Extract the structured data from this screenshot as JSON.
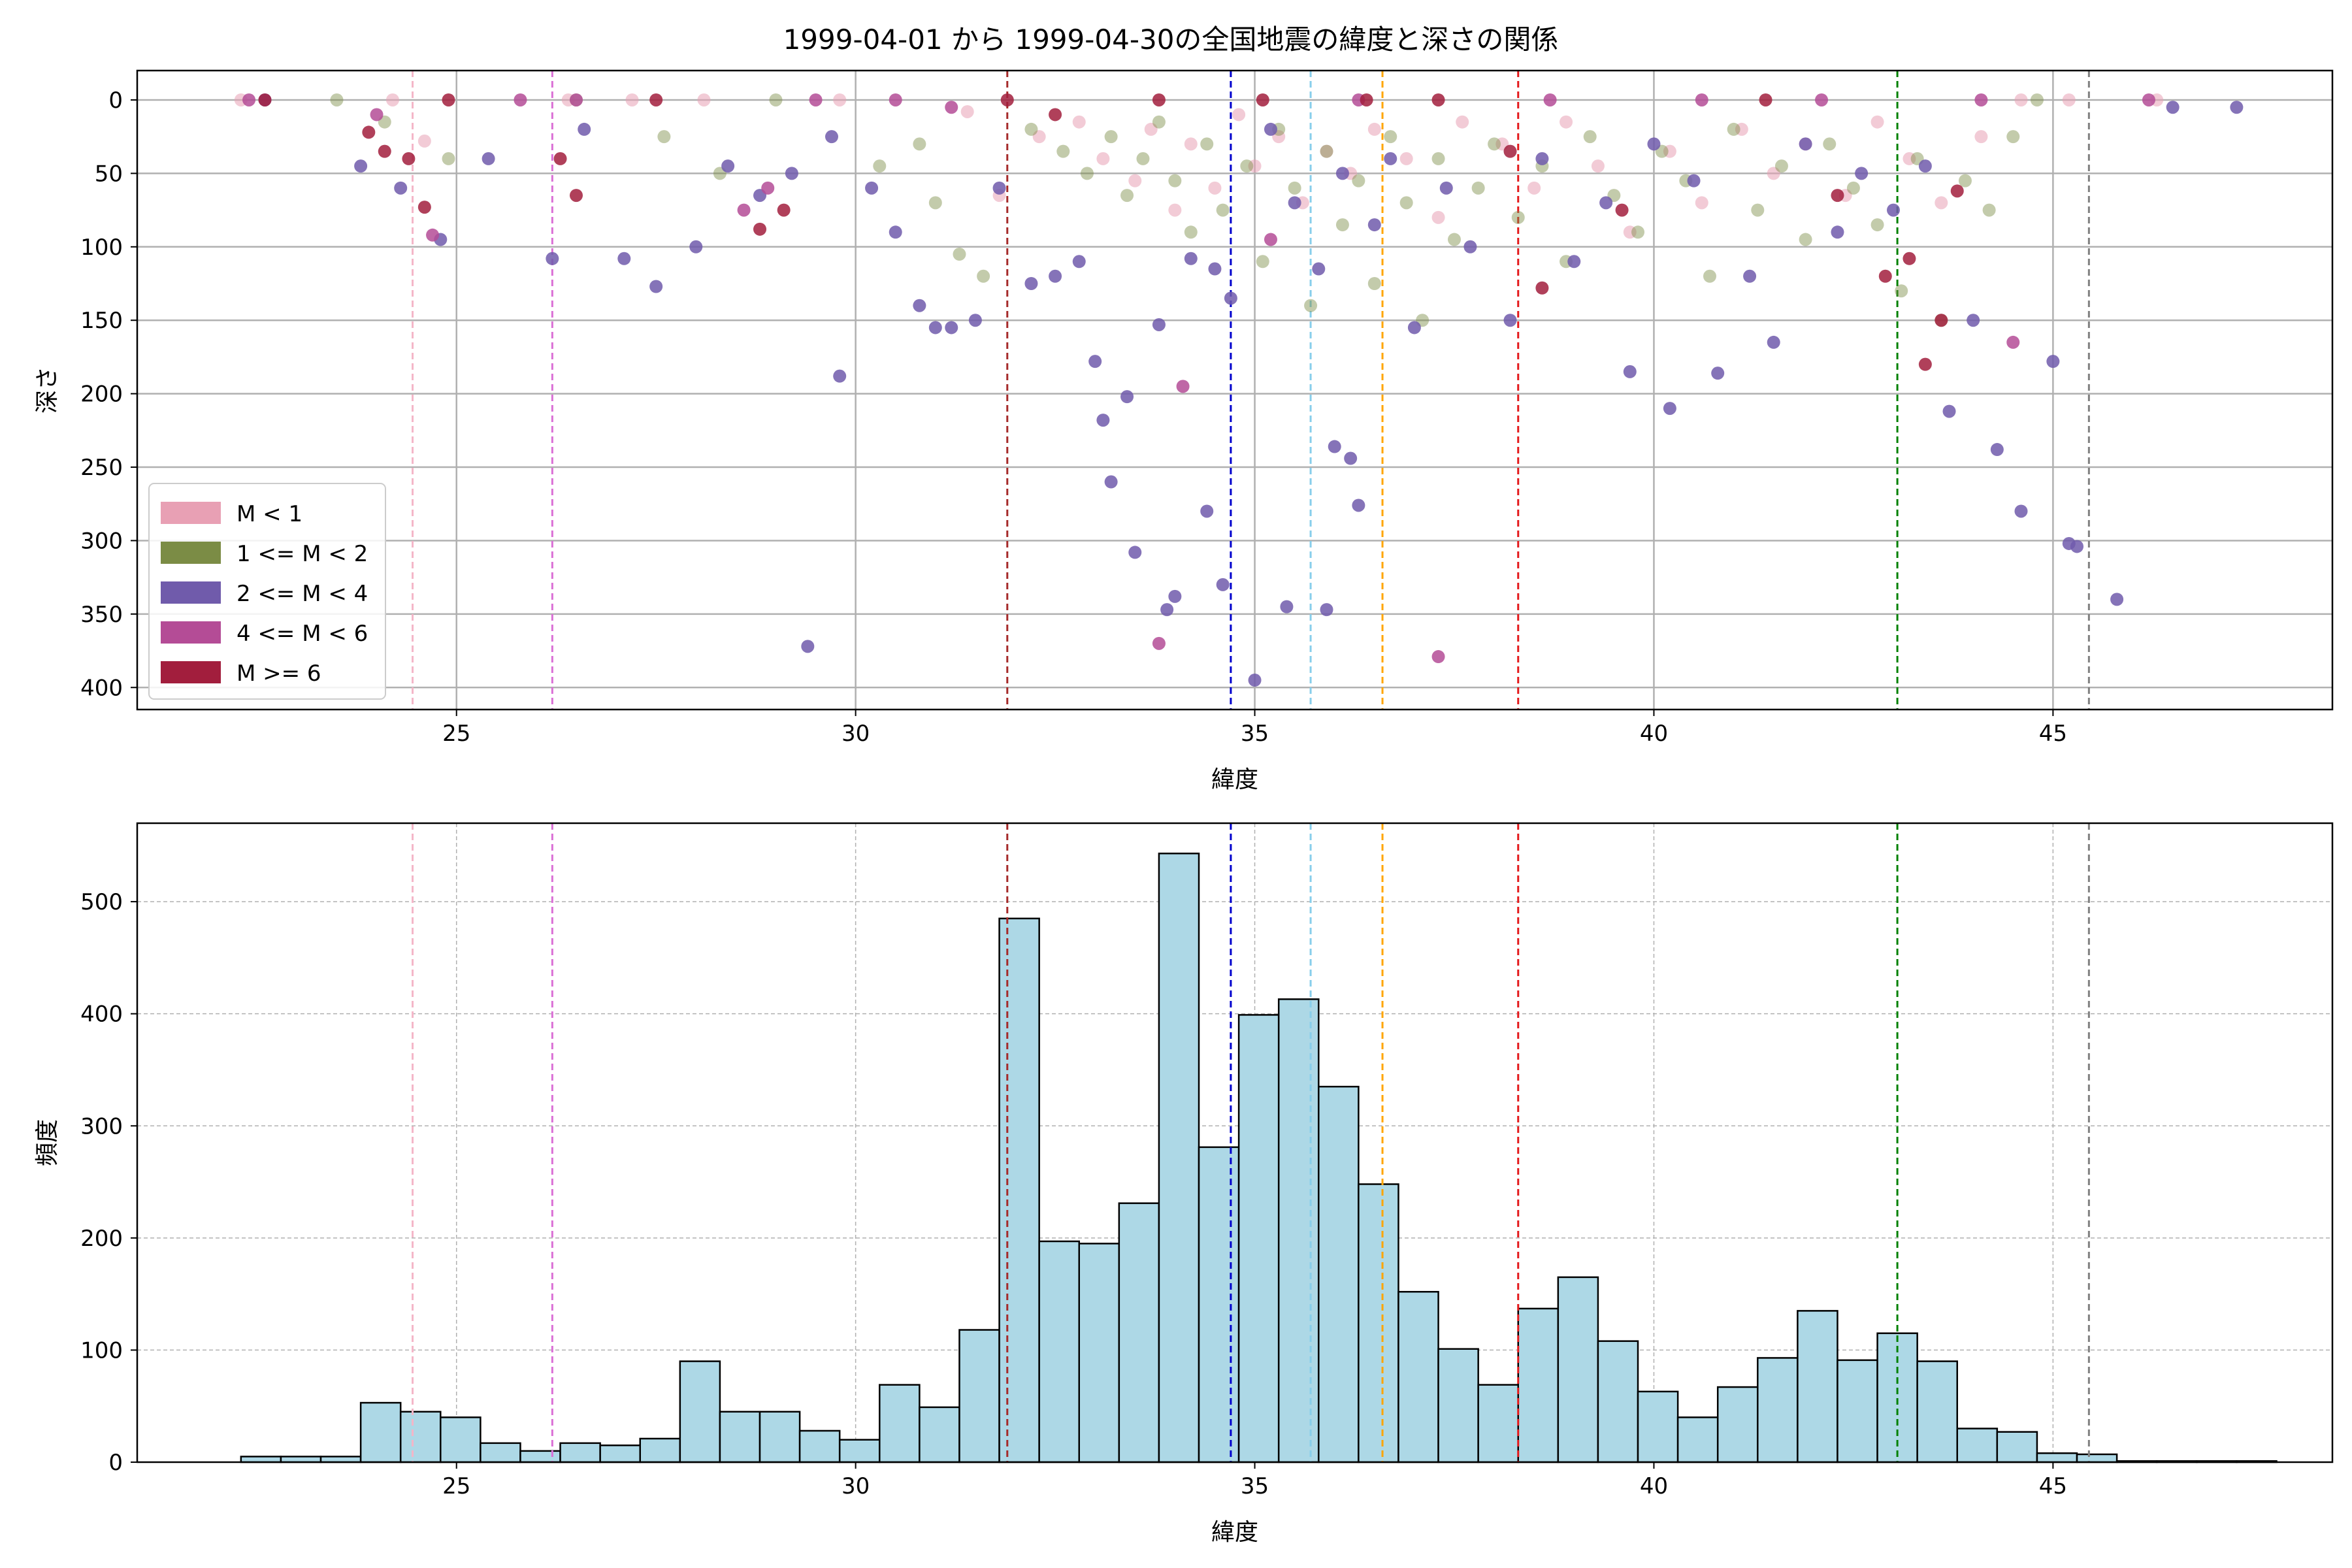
{
  "title": "1999-04-01 から 1999-04-30の全国地震の緯度と深さの関係",
  "chart_data": [
    {
      "type": "scatter",
      "xlabel": "緯度",
      "ylabel": "深さ",
      "xlim": [
        21,
        48.5
      ],
      "ylim": [
        415,
        -20
      ],
      "y_inverted": true,
      "xticks": [
        25,
        30,
        35,
        40,
        45
      ],
      "yticks": [
        0,
        50,
        100,
        150,
        200,
        250,
        300,
        350,
        400
      ],
      "grid": true,
      "legend_position": "lower-left",
      "legend": [
        {
          "label": "M < 1",
          "color": "#e8a0b4"
        },
        {
          "label": "1 <= M < 2",
          "color": "#7b8c45"
        },
        {
          "label": "2 <= M < 4",
          "color": "#705bab"
        },
        {
          "label": "4 <= M < 6",
          "color": "#b44c96"
        },
        {
          "label": "M >= 6",
          "color": "#a21e3d"
        }
      ],
      "series": [
        {
          "name": "M < 1",
          "color": "#e8a0b4",
          "points": [
            [
              22.3,
              0
            ],
            [
              24.2,
              0
            ],
            [
              24.6,
              28
            ],
            [
              26.4,
              0
            ],
            [
              27.2,
              0
            ],
            [
              28.1,
              0
            ],
            [
              29.8,
              0
            ],
            [
              31.4,
              8
            ],
            [
              31.8,
              65
            ],
            [
              32.3,
              25
            ],
            [
              32.8,
              15
            ],
            [
              33.1,
              40
            ],
            [
              33.5,
              55
            ],
            [
              33.7,
              20
            ],
            [
              34.0,
              75
            ],
            [
              34.2,
              30
            ],
            [
              34.5,
              60
            ],
            [
              34.8,
              10
            ],
            [
              35.0,
              45
            ],
            [
              35.3,
              25
            ],
            [
              35.6,
              70
            ],
            [
              35.9,
              35
            ],
            [
              36.2,
              50
            ],
            [
              36.5,
              20
            ],
            [
              36.9,
              40
            ],
            [
              37.3,
              80
            ],
            [
              37.6,
              15
            ],
            [
              38.1,
              30
            ],
            [
              38.5,
              60
            ],
            [
              38.9,
              15
            ],
            [
              39.3,
              45
            ],
            [
              39.7,
              90
            ],
            [
              40.2,
              35
            ],
            [
              40.6,
              70
            ],
            [
              41.1,
              20
            ],
            [
              41.5,
              50
            ],
            [
              41.9,
              30
            ],
            [
              42.4,
              65
            ],
            [
              42.8,
              15
            ],
            [
              43.2,
              40
            ],
            [
              43.6,
              70
            ],
            [
              44.1,
              25
            ],
            [
              44.6,
              0
            ],
            [
              45.2,
              0
            ],
            [
              46.3,
              0
            ]
          ]
        },
        {
          "name": "1 <= M < 2",
          "color": "#7b8c45",
          "points": [
            [
              23.5,
              0
            ],
            [
              24.1,
              15
            ],
            [
              24.9,
              40
            ],
            [
              26.5,
              0
            ],
            [
              27.6,
              25
            ],
            [
              28.3,
              50
            ],
            [
              29.0,
              0
            ],
            [
              30.3,
              45
            ],
            [
              30.8,
              30
            ],
            [
              31.0,
              70
            ],
            [
              31.3,
              105
            ],
            [
              31.6,
              120
            ],
            [
              32.2,
              20
            ],
            [
              32.6,
              35
            ],
            [
              32.9,
              50
            ],
            [
              33.2,
              25
            ],
            [
              33.4,
              65
            ],
            [
              33.6,
              40
            ],
            [
              33.8,
              15
            ],
            [
              34.0,
              55
            ],
            [
              34.2,
              90
            ],
            [
              34.4,
              30
            ],
            [
              34.6,
              75
            ],
            [
              34.9,
              45
            ],
            [
              35.1,
              110
            ],
            [
              35.3,
              20
            ],
            [
              35.5,
              60
            ],
            [
              35.7,
              140
            ],
            [
              35.9,
              35
            ],
            [
              36.1,
              85
            ],
            [
              36.3,
              55
            ],
            [
              36.5,
              125
            ],
            [
              36.7,
              25
            ],
            [
              36.9,
              70
            ],
            [
              37.1,
              150
            ],
            [
              37.3,
              40
            ],
            [
              37.5,
              95
            ],
            [
              37.8,
              60
            ],
            [
              38.0,
              30
            ],
            [
              38.3,
              80
            ],
            [
              38.6,
              45
            ],
            [
              38.9,
              110
            ],
            [
              39.2,
              25
            ],
            [
              39.5,
              65
            ],
            [
              39.8,
              90
            ],
            [
              40.1,
              35
            ],
            [
              40.4,
              55
            ],
            [
              40.7,
              120
            ],
            [
              41.0,
              20
            ],
            [
              41.3,
              75
            ],
            [
              41.6,
              45
            ],
            [
              41.9,
              95
            ],
            [
              42.2,
              30
            ],
            [
              42.5,
              60
            ],
            [
              42.8,
              85
            ],
            [
              43.1,
              130
            ],
            [
              43.3,
              40
            ],
            [
              43.6,
              150
            ],
            [
              43.9,
              55
            ],
            [
              44.2,
              75
            ],
            [
              44.5,
              25
            ],
            [
              44.8,
              0
            ]
          ]
        },
        {
          "name": "2 <= M < 4",
          "color": "#705bab",
          "points": [
            [
              22.6,
              0
            ],
            [
              23.8,
              45
            ],
            [
              24.3,
              60
            ],
            [
              24.8,
              95
            ],
            [
              25.4,
              40
            ],
            [
              26.2,
              108
            ],
            [
              26.6,
              20
            ],
            [
              27.1,
              108
            ],
            [
              27.5,
              127
            ],
            [
              28.0,
              100
            ],
            [
              28.4,
              45
            ],
            [
              28.8,
              65
            ],
            [
              29.2,
              50
            ],
            [
              29.4,
              372
            ],
            [
              29.7,
              25
            ],
            [
              29.8,
              188
            ],
            [
              30.2,
              60
            ],
            [
              30.5,
              90
            ],
            [
              30.8,
              140
            ],
            [
              31.0,
              155
            ],
            [
              31.2,
              155
            ],
            [
              31.5,
              150
            ],
            [
              31.8,
              60
            ],
            [
              32.2,
              125
            ],
            [
              32.5,
              120
            ],
            [
              32.8,
              110
            ],
            [
              33.0,
              178
            ],
            [
              33.1,
              218
            ],
            [
              33.2,
              260
            ],
            [
              33.4,
              202
            ],
            [
              33.5,
              308
            ],
            [
              33.8,
              153
            ],
            [
              33.9,
              347
            ],
            [
              34.0,
              338
            ],
            [
              34.2,
              108
            ],
            [
              34.4,
              280
            ],
            [
              34.5,
              115
            ],
            [
              34.6,
              330
            ],
            [
              34.7,
              135
            ],
            [
              35.0,
              395
            ],
            [
              35.2,
              20
            ],
            [
              35.4,
              345
            ],
            [
              35.5,
              70
            ],
            [
              35.8,
              115
            ],
            [
              35.9,
              347
            ],
            [
              36.0,
              236
            ],
            [
              36.1,
              50
            ],
            [
              36.2,
              244
            ],
            [
              36.3,
              276
            ],
            [
              36.5,
              85
            ],
            [
              36.7,
              40
            ],
            [
              37.0,
              155
            ],
            [
              37.4,
              60
            ],
            [
              37.7,
              100
            ],
            [
              38.2,
              150
            ],
            [
              38.6,
              40
            ],
            [
              39.0,
              110
            ],
            [
              39.4,
              70
            ],
            [
              39.7,
              185
            ],
            [
              40.0,
              30
            ],
            [
              40.2,
              210
            ],
            [
              40.5,
              55
            ],
            [
              40.8,
              186
            ],
            [
              41.2,
              120
            ],
            [
              41.5,
              165
            ],
            [
              41.9,
              30
            ],
            [
              42.3,
              90
            ],
            [
              42.6,
              50
            ],
            [
              43.0,
              75
            ],
            [
              43.4,
              45
            ],
            [
              43.7,
              212
            ],
            [
              44.0,
              150
            ],
            [
              44.3,
              238
            ],
            [
              44.6,
              280
            ],
            [
              45.0,
              178
            ],
            [
              45.2,
              302
            ],
            [
              45.3,
              304
            ],
            [
              45.8,
              340
            ],
            [
              46.5,
              5
            ],
            [
              47.3,
              5
            ]
          ]
        },
        {
          "name": "4 <= M < 6",
          "color": "#b44c96",
          "points": [
            [
              22.4,
              0
            ],
            [
              24.0,
              10
            ],
            [
              24.7,
              92
            ],
            [
              25.8,
              0
            ],
            [
              26.5,
              0
            ],
            [
              28.6,
              75
            ],
            [
              28.9,
              60
            ],
            [
              29.5,
              0
            ],
            [
              30.5,
              0
            ],
            [
              31.2,
              5
            ],
            [
              33.8,
              370
            ],
            [
              34.1,
              195
            ],
            [
              35.2,
              95
            ],
            [
              36.3,
              0
            ],
            [
              37.3,
              379
            ],
            [
              38.7,
              0
            ],
            [
              40.6,
              0
            ],
            [
              42.1,
              0
            ],
            [
              44.1,
              0
            ],
            [
              44.5,
              165
            ],
            [
              46.2,
              0
            ]
          ]
        },
        {
          "name": "M >= 6",
          "color": "#a21e3d",
          "points": [
            [
              22.6,
              0
            ],
            [
              23.9,
              22
            ],
            [
              24.1,
              35
            ],
            [
              24.4,
              40
            ],
            [
              24.6,
              73
            ],
            [
              24.9,
              0
            ],
            [
              26.3,
              40
            ],
            [
              26.5,
              65
            ],
            [
              27.5,
              0
            ],
            [
              28.8,
              88
            ],
            [
              29.1,
              75
            ],
            [
              31.9,
              0
            ],
            [
              32.5,
              10
            ],
            [
              33.8,
              0
            ],
            [
              35.1,
              0
            ],
            [
              36.4,
              0
            ],
            [
              37.3,
              0
            ],
            [
              38.2,
              35
            ],
            [
              38.6,
              128
            ],
            [
              39.6,
              75
            ],
            [
              41.4,
              0
            ],
            [
              42.3,
              65
            ],
            [
              42.9,
              120
            ],
            [
              43.2,
              108
            ],
            [
              43.4,
              180
            ],
            [
              43.6,
              150
            ],
            [
              43.8,
              62
            ]
          ]
        }
      ]
    },
    {
      "type": "bar",
      "xlabel": "緯度",
      "ylabel": "頻度",
      "xlim": [
        21,
        48.5
      ],
      "ylim": [
        0,
        570
      ],
      "xticks": [
        25,
        30,
        35,
        40,
        45
      ],
      "yticks": [
        0,
        100,
        200,
        300,
        400,
        500
      ],
      "grid": true,
      "bin_edges": [
        22.3,
        22.8,
        23.3,
        23.8,
        24.3,
        24.8,
        25.3,
        25.8,
        26.3,
        26.8,
        27.3,
        27.8,
        28.3,
        28.8,
        29.3,
        29.8,
        30.3,
        30.8,
        31.3,
        31.8,
        32.3,
        32.8,
        33.3,
        33.8,
        34.3,
        34.8,
        35.3,
        35.8,
        36.3,
        36.8,
        37.3,
        37.8,
        38.3,
        38.8,
        39.3,
        39.8,
        40.3,
        40.8,
        41.3,
        41.8,
        42.3,
        42.8,
        43.3,
        43.8,
        44.3,
        44.8,
        45.3,
        45.8,
        46.3,
        46.8,
        47.3,
        47.8
      ],
      "values": [
        5,
        5,
        5,
        53,
        45,
        40,
        17,
        10,
        17,
        15,
        21,
        90,
        45,
        45,
        28,
        20,
        69,
        49,
        118,
        485,
        197,
        195,
        231,
        543,
        281,
        399,
        413,
        335,
        248,
        152,
        101,
        69,
        137,
        165,
        108,
        63,
        40,
        67,
        93,
        135,
        91,
        115,
        90,
        30,
        27,
        8,
        7,
        1,
        1,
        1,
        1
      ]
    }
  ],
  "reference_lines": [
    {
      "x": 24.45,
      "color": "#f4b6c8"
    },
    {
      "x": 26.2,
      "color": "#da70d6"
    },
    {
      "x": 31.9,
      "color": "#a52a2a"
    },
    {
      "x": 34.7,
      "color": "#0000cd"
    },
    {
      "x": 35.7,
      "color": "#87ceeb"
    },
    {
      "x": 36.6,
      "color": "#ffa500"
    },
    {
      "x": 38.3,
      "color": "#e41a1c"
    },
    {
      "x": 43.05,
      "color": "#008000"
    },
    {
      "x": 45.45,
      "color": "#808080"
    }
  ],
  "colors": {
    "hist_fill": "#add8e6",
    "hist_edge": "#000000",
    "grid": "#b0b0b0"
  }
}
